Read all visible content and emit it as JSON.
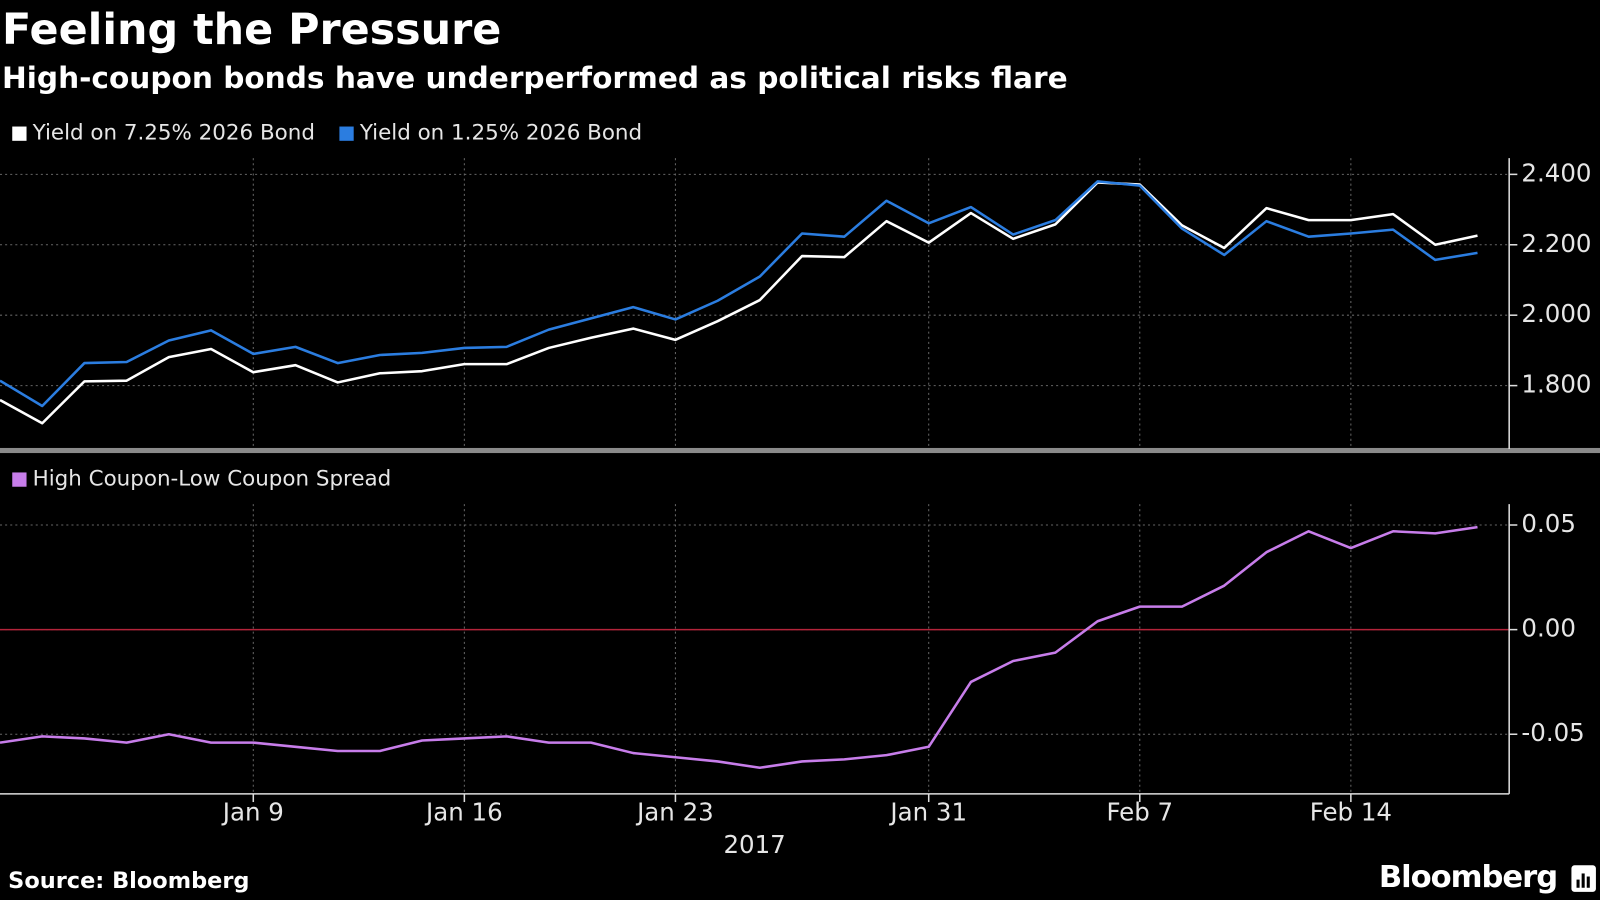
{
  "chart_data": {
    "type": "line",
    "title": "Feeling the Pressure",
    "subtitle": "High-coupon bonds have underperformed as political risks flare",
    "source": "Source: Bloomberg",
    "brand": "Bloomberg",
    "categories": [
      null,
      null,
      null,
      null,
      null,
      null,
      "Jan 9",
      null,
      null,
      null,
      null,
      "Jan 16",
      null,
      null,
      null,
      null,
      "Jan 23",
      null,
      null,
      null,
      null,
      null,
      "Jan 31",
      null,
      null,
      null,
      null,
      "Feb 7",
      null,
      null,
      null,
      null,
      "Feb 14",
      null,
      null,
      null
    ],
    "xlabel": "2017",
    "grid": true,
    "panels": [
      {
        "ylim": [
          1.62,
          2.446
        ],
        "yticks": [
          {
            "value": 1.8,
            "label": "1.800"
          },
          {
            "value": 2.0,
            "label": "2.000"
          },
          {
            "value": 2.2,
            "label": "2.200"
          },
          {
            "value": 2.4,
            "label": "2.400"
          }
        ],
        "series": [
          {
            "name": "Yield on 7.25% 2026 Bond",
            "color": "#ffffff",
            "values": [
              1.759,
              1.693,
              1.812,
              1.814,
              1.881,
              1.904,
              1.838,
              1.858,
              1.809,
              1.835,
              1.841,
              1.861,
              1.861,
              1.907,
              1.936,
              1.962,
              1.93,
              1.983,
              2.043,
              2.168,
              2.165,
              2.267,
              2.206,
              2.29,
              2.217,
              2.258,
              2.377,
              2.371,
              2.255,
              2.191,
              2.304,
              2.27,
              2.27,
              2.287,
              2.2,
              2.226
            ]
          },
          {
            "name": "Yield on 1.25% 2026 Bond",
            "color": "#2b7de0",
            "values": [
              1.814,
              1.742,
              1.864,
              1.867,
              1.928,
              1.957,
              1.89,
              1.91,
              1.864,
              1.887,
              1.893,
              1.907,
              1.91,
              1.959,
              1.991,
              2.023,
              1.988,
              2.041,
              2.11,
              2.232,
              2.223,
              2.325,
              2.261,
              2.307,
              2.229,
              2.27,
              2.38,
              2.368,
              2.246,
              2.171,
              2.267,
              2.223,
              2.232,
              2.243,
              2.157,
              2.177
            ]
          }
        ]
      },
      {
        "ylim": [
          -0.0785,
          0.06
        ],
        "yticks": [
          {
            "value": -0.05,
            "label": "-0.05"
          },
          {
            "value": 0,
            "label": "0.00"
          },
          {
            "value": 0.05,
            "label": "0.05"
          }
        ],
        "zero_line": {
          "value": 0,
          "color": "#b3243a"
        },
        "series": [
          {
            "name": "High Coupon-Low Coupon Spread",
            "color": "#c77dea",
            "values": [
              -0.054,
              -0.051,
              -0.052,
              -0.054,
              -0.05,
              -0.054,
              -0.054,
              -0.056,
              -0.058,
              -0.058,
              -0.053,
              -0.052,
              -0.051,
              -0.054,
              -0.054,
              -0.059,
              -0.061,
              -0.063,
              -0.066,
              -0.063,
              -0.062,
              -0.06,
              -0.056,
              -0.025,
              -0.015,
              -0.011,
              0.004,
              0.011,
              0.011,
              0.021,
              0.037,
              0.047,
              0.039,
              0.047,
              0.046,
              0.049
            ]
          }
        ]
      }
    ]
  }
}
